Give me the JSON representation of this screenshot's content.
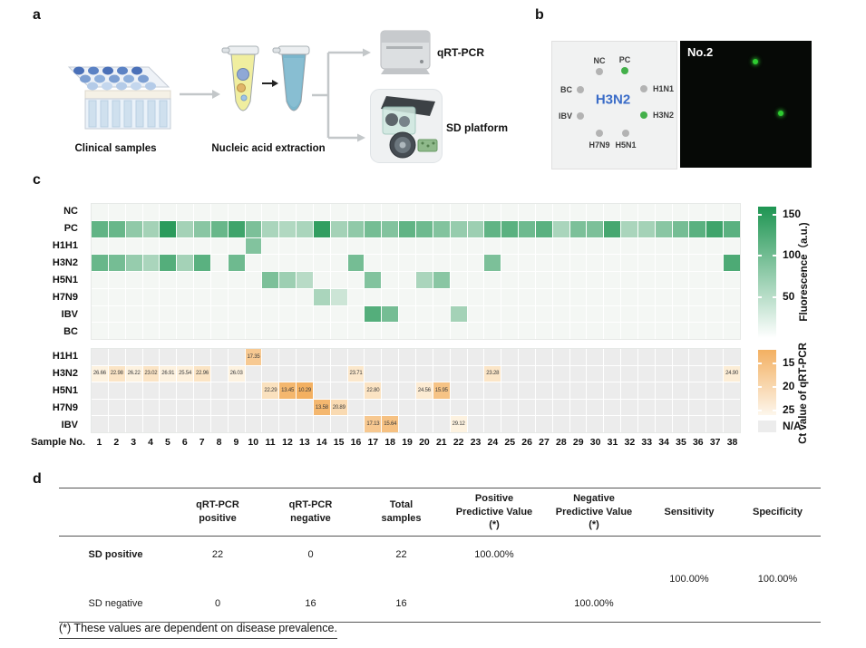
{
  "panels": {
    "a_label": "a",
    "b_label": "b",
    "c_label": "c",
    "d_label": "d"
  },
  "panel_a": {
    "caption_samples": "Clinical samples",
    "caption_extraction": "Nucleic acid extraction",
    "qrtpcr_label": "qRT-PCR",
    "sd_label": "SD platform"
  },
  "panel_b": {
    "chip_center_label": "H3N2",
    "image_title": "No.2",
    "spots": [
      {
        "name": "NC",
        "state": "gray"
      },
      {
        "name": "PC",
        "state": "green"
      },
      {
        "name": "BC",
        "state": "gray"
      },
      {
        "name": "H1N1",
        "state": "gray"
      },
      {
        "name": "IBV",
        "state": "gray"
      },
      {
        "name": "H3N2",
        "state": "green"
      },
      {
        "name": "H7N9",
        "state": "gray"
      },
      {
        "name": "H5N1",
        "state": "gray"
      }
    ],
    "colors": {
      "positive_spot": "#43b04a",
      "negative_spot": "#b3b3b3",
      "center_text": "#3a6cc8",
      "fluorescent_dot": "#2ecc31"
    }
  },
  "panel_c": {
    "sample_axis_label": "Sample No."
  },
  "chart_data": [
    {
      "type": "heatmap",
      "name": "SD platform fluorescence intensity per probe and sample",
      "rows": [
        "NC",
        "PC",
        "H1H1",
        "H3N2",
        "H5N1",
        "H7N9",
        "IBV",
        "BC"
      ],
      "columns": [
        1,
        2,
        3,
        4,
        5,
        6,
        7,
        8,
        9,
        10,
        11,
        12,
        13,
        14,
        15,
        16,
        17,
        18,
        19,
        20,
        21,
        22,
        23,
        24,
        25,
        26,
        27,
        28,
        29,
        30,
        31,
        32,
        33,
        34,
        35,
        36,
        37,
        38
      ],
      "values": [
        [
          0,
          0,
          0,
          0,
          0,
          0,
          0,
          0,
          0,
          0,
          0,
          0,
          0,
          0,
          0,
          0,
          0,
          0,
          0,
          0,
          0,
          0,
          0,
          0,
          0,
          0,
          0,
          0,
          0,
          0,
          0,
          0,
          0,
          0,
          0,
          0,
          0,
          0
        ],
        [
          110,
          105,
          75,
          60,
          150,
          60,
          80,
          105,
          135,
          90,
          55,
          50,
          55,
          145,
          60,
          75,
          95,
          85,
          110,
          100,
          85,
          70,
          65,
          110,
          115,
          100,
          115,
          55,
          90,
          90,
          130,
          55,
          60,
          80,
          95,
          115,
          135,
          115
        ],
        [
          0,
          0,
          0,
          0,
          0,
          0,
          0,
          0,
          0,
          85,
          0,
          0,
          0,
          0,
          0,
          0,
          0,
          0,
          0,
          0,
          0,
          0,
          0,
          0,
          0,
          0,
          0,
          0,
          0,
          0,
          0,
          0,
          0,
          0,
          0,
          0,
          0,
          0
        ],
        [
          105,
          95,
          70,
          55,
          120,
          60,
          115,
          0,
          100,
          0,
          0,
          0,
          0,
          0,
          0,
          95,
          0,
          0,
          0,
          0,
          0,
          0,
          0,
          90,
          0,
          0,
          0,
          0,
          0,
          0,
          0,
          0,
          0,
          0,
          0,
          0,
          0,
          125
        ],
        [
          0,
          0,
          0,
          0,
          0,
          0,
          0,
          0,
          0,
          0,
          90,
          65,
          45,
          0,
          0,
          0,
          85,
          0,
          0,
          55,
          80,
          0,
          0,
          0,
          0,
          0,
          0,
          0,
          0,
          0,
          0,
          0,
          0,
          0,
          0,
          0,
          0,
          0
        ],
        [
          0,
          0,
          0,
          0,
          0,
          0,
          0,
          0,
          0,
          0,
          0,
          0,
          0,
          55,
          30,
          0,
          0,
          0,
          0,
          0,
          0,
          0,
          0,
          0,
          0,
          0,
          0,
          0,
          0,
          0,
          0,
          0,
          0,
          0,
          0,
          0,
          0,
          0
        ],
        [
          0,
          0,
          0,
          0,
          0,
          0,
          0,
          0,
          0,
          0,
          0,
          0,
          0,
          0,
          0,
          0,
          120,
          95,
          0,
          0,
          0,
          60,
          0,
          0,
          0,
          0,
          0,
          0,
          0,
          0,
          0,
          0,
          0,
          0,
          0,
          0,
          0,
          0
        ],
        [
          0,
          0,
          0,
          0,
          0,
          0,
          0,
          0,
          0,
          0,
          0,
          0,
          0,
          0,
          0,
          0,
          0,
          0,
          0,
          0,
          0,
          0,
          0,
          0,
          0,
          0,
          0,
          0,
          0,
          0,
          0,
          0,
          0,
          0,
          0,
          0,
          0,
          0
        ]
      ],
      "colorbar": {
        "label": "Fluorescence（a.u.)",
        "ticks": [
          "150",
          "100",
          "50"
        ],
        "min": 0,
        "max": 160,
        "color_high": "#1e9552",
        "color_low": "#f4f7f4"
      }
    },
    {
      "type": "heatmap",
      "name": "qRT-PCR Ct value per virus and sample",
      "rows": [
        "H1H1",
        "H3N2",
        "H5N1",
        "H7N9",
        "IBV"
      ],
      "columns": [
        1,
        2,
        3,
        4,
        5,
        6,
        7,
        8,
        9,
        10,
        11,
        12,
        13,
        14,
        15,
        16,
        17,
        18,
        19,
        20,
        21,
        22,
        23,
        24,
        25,
        26,
        27,
        28,
        29,
        30,
        31,
        32,
        33,
        34,
        35,
        36,
        37,
        38
      ],
      "values": [
        [
          null,
          null,
          null,
          null,
          null,
          null,
          null,
          null,
          null,
          17.35,
          null,
          null,
          null,
          null,
          null,
          null,
          null,
          null,
          null,
          null,
          null,
          null,
          null,
          null,
          null,
          null,
          null,
          null,
          null,
          null,
          null,
          null,
          null,
          null,
          null,
          null,
          null,
          null
        ],
        [
          26.66,
          22.98,
          26.22,
          23.02,
          26.91,
          25.54,
          22.96,
          null,
          26.03,
          null,
          null,
          null,
          null,
          null,
          null,
          23.71,
          null,
          null,
          null,
          null,
          null,
          null,
          null,
          23.28,
          null,
          null,
          null,
          null,
          null,
          null,
          null,
          null,
          null,
          null,
          null,
          null,
          null,
          24.9
        ],
        [
          null,
          null,
          null,
          null,
          null,
          null,
          null,
          null,
          null,
          null,
          22.29,
          13.45,
          10.29,
          null,
          null,
          null,
          22.8,
          null,
          null,
          24.56,
          15.95,
          null,
          null,
          null,
          null,
          null,
          null,
          null,
          null,
          null,
          null,
          null,
          null,
          null,
          null,
          null,
          null,
          null
        ],
        [
          null,
          null,
          null,
          null,
          null,
          null,
          null,
          null,
          null,
          null,
          null,
          null,
          null,
          13.58,
          20.89,
          null,
          null,
          null,
          null,
          null,
          null,
          null,
          null,
          null,
          null,
          null,
          null,
          null,
          null,
          null,
          null,
          null,
          null,
          null,
          null,
          null,
          null,
          null
        ],
        [
          null,
          null,
          null,
          null,
          null,
          null,
          null,
          null,
          null,
          null,
          null,
          null,
          null,
          null,
          null,
          null,
          17.13,
          15.64,
          null,
          null,
          null,
          29.12,
          null,
          null,
          null,
          null,
          null,
          null,
          null,
          null,
          null,
          null,
          null,
          null,
          null,
          null,
          null,
          null
        ]
      ],
      "colorbar": {
        "label": "Ct value of qRT-PCR",
        "ticks": [
          "15",
          "20",
          "25"
        ],
        "min": 12,
        "max": 26,
        "color_low_ct": "#f3b061",
        "color_high_ct": "#fdf2e0",
        "na_label": "N/A",
        "na_color": "#ececec"
      }
    }
  ],
  "panel_d": {
    "columns": [
      "qRT-PCR\npositive",
      "qRT-PCR\nnegative",
      "Total\nsamples",
      "Positive\nPredictive Value\n(*)",
      "Negative\nPredictive Value\n(*)",
      "Sensitivity",
      "Specificity"
    ],
    "rows": [
      {
        "label": "SD positive",
        "values": [
          "22",
          "0",
          "22"
        ],
        "ppv": "100.00%",
        "npv": ""
      },
      {
        "label": "SD negative",
        "values": [
          "0",
          "16",
          "16"
        ],
        "ppv": "",
        "npv": "100.00%"
      }
    ],
    "sensitivity": "100.00%",
    "specificity": "100.00%",
    "footnote": "(*) These values are dependent on disease prevalence."
  }
}
